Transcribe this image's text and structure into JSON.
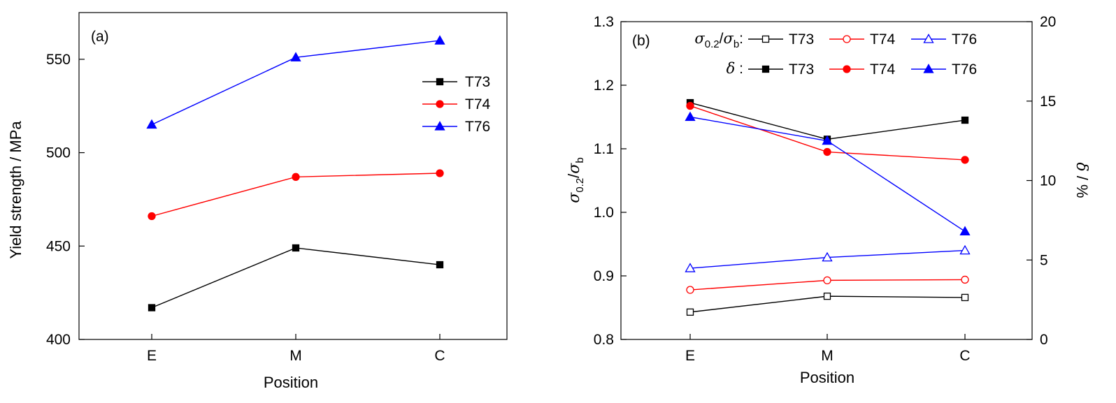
{
  "chart_data": [
    {
      "type": "line",
      "panel_label": "(a)",
      "categories": [
        "E",
        "M",
        "C"
      ],
      "xlabel": "Position",
      "ylabel": "Yield strength / MPa",
      "ylim": [
        400,
        575
      ],
      "yticks": [
        400,
        450,
        500,
        550
      ],
      "legend_position": "right",
      "series": [
        {
          "name": "T73",
          "values": [
            417,
            449,
            440
          ],
          "color": "#000000",
          "marker": "square-filled"
        },
        {
          "name": "T74",
          "values": [
            466,
            487,
            489
          ],
          "color": "#ff0000",
          "marker": "circle-filled"
        },
        {
          "name": "T76",
          "values": [
            515,
            551,
            560
          ],
          "color": "#0000ff",
          "marker": "triangle-filled"
        }
      ]
    },
    {
      "type": "line",
      "panel_label": "(b)",
      "categories": [
        "E",
        "M",
        "C"
      ],
      "xlabel": "Position",
      "ylabel_left": {
        "main": "σ",
        "sub1": "0.2",
        "mid": "/σ",
        "sub2": "b"
      },
      "ylabel_right": {
        "symbol": "δ",
        "rest": " / %"
      },
      "ylim_left": [
        0.8,
        1.3
      ],
      "yticks_left": [
        "0.8",
        "0.9",
        "1.0",
        "1.1",
        "1.2",
        "1.3"
      ],
      "ylim_right": [
        0,
        20
      ],
      "yticks_right": [
        "0",
        "5",
        "10",
        "15",
        "20"
      ],
      "legend_position": "top",
      "legend_row1_label": {
        "main": "σ",
        "sub1": "0.2",
        "mid": "/σ",
        "sub2": "b",
        "tail": ":"
      },
      "legend_row2_label": {
        "symbol": "δ",
        "tail": " :"
      },
      "series": [
        {
          "name": "T73",
          "axis": "left",
          "values": [
            0.843,
            0.868,
            0.866
          ],
          "color": "#000000",
          "marker": "square-open"
        },
        {
          "name": "T74",
          "axis": "left",
          "values": [
            0.878,
            0.893,
            0.894
          ],
          "color": "#ff0000",
          "marker": "circle-open"
        },
        {
          "name": "T76",
          "axis": "left",
          "values": [
            0.912,
            0.929,
            0.94
          ],
          "color": "#0000ff",
          "marker": "triangle-open"
        },
        {
          "name": "T73",
          "axis": "right",
          "values": [
            14.9,
            12.6,
            13.8
          ],
          "color": "#000000",
          "marker": "square-filled"
        },
        {
          "name": "T74",
          "axis": "right",
          "values": [
            14.7,
            11.8,
            11.3
          ],
          "color": "#ff0000",
          "marker": "circle-filled"
        },
        {
          "name": "T76",
          "axis": "right",
          "values": [
            14.0,
            12.5,
            6.8
          ],
          "color": "#0000ff",
          "marker": "triangle-filled"
        }
      ]
    }
  ]
}
